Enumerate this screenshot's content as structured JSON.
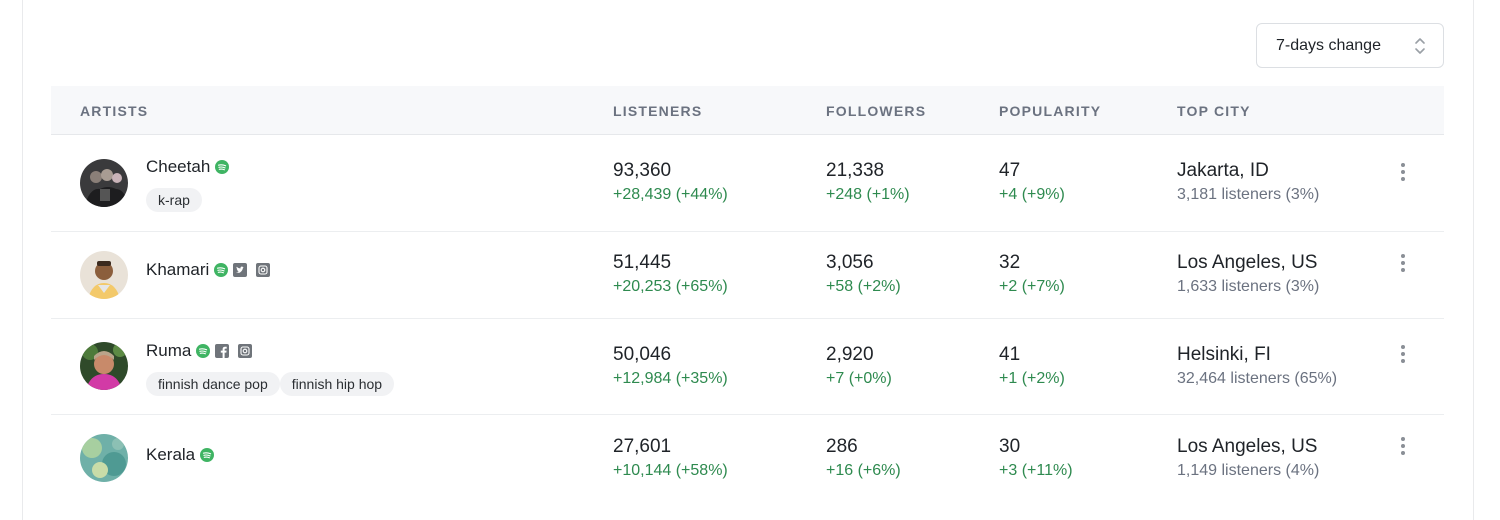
{
  "select": {
    "value": "7-days change"
  },
  "columns": {
    "artists": "ARTISTS",
    "listeners": "LISTENERS",
    "followers": "FOLLOWERS",
    "popularity": "POPULARITY",
    "top_city": "TOP CITY"
  },
  "colors": {
    "positive": "#2e8a4f",
    "spotify": "#3fb463",
    "muted": "#6b7280"
  },
  "rows": [
    {
      "name": "Cheetah",
      "icons": [
        "spotify-icon"
      ],
      "tags": [
        "k-rap"
      ],
      "listeners": "93,360",
      "listeners_change": "+28,439 (+44%)",
      "followers": "21,338",
      "followers_change": "+248 (+1%)",
      "popularity": "47",
      "popularity_change": "+4 (+9%)",
      "city": "Jakarta, ID",
      "city_listeners": "3,181 listeners (3%)"
    },
    {
      "name": "Khamari",
      "icons": [
        "spotify-icon",
        "twitter-icon",
        "instagram-icon"
      ],
      "tags": [],
      "listeners": "51,445",
      "listeners_change": "+20,253 (+65%)",
      "followers": "3,056",
      "followers_change": "+58 (+2%)",
      "popularity": "32",
      "popularity_change": "+2 (+7%)",
      "city": "Los Angeles, US",
      "city_listeners": "1,633 listeners (3%)"
    },
    {
      "name": "Ruma",
      "icons": [
        "spotify-icon",
        "facebook-icon",
        "instagram-icon"
      ],
      "tags": [
        "finnish dance pop",
        "finnish hip hop"
      ],
      "listeners": "50,046",
      "listeners_change": "+12,984 (+35%)",
      "followers": "2,920",
      "followers_change": "+7 (+0%)",
      "popularity": "41",
      "popularity_change": "+1 (+2%)",
      "city": "Helsinki, FI",
      "city_listeners": "32,464 listeners (65%)"
    },
    {
      "name": "Kerala",
      "icons": [
        "spotify-icon"
      ],
      "tags": [],
      "listeners": "27,601",
      "listeners_change": "+10,144 (+58%)",
      "followers": "286",
      "followers_change": "+16 (+6%)",
      "popularity": "30",
      "popularity_change": "+3 (+11%)",
      "city": "Los Angeles, US",
      "city_listeners": "1,149 listeners (4%)"
    }
  ]
}
